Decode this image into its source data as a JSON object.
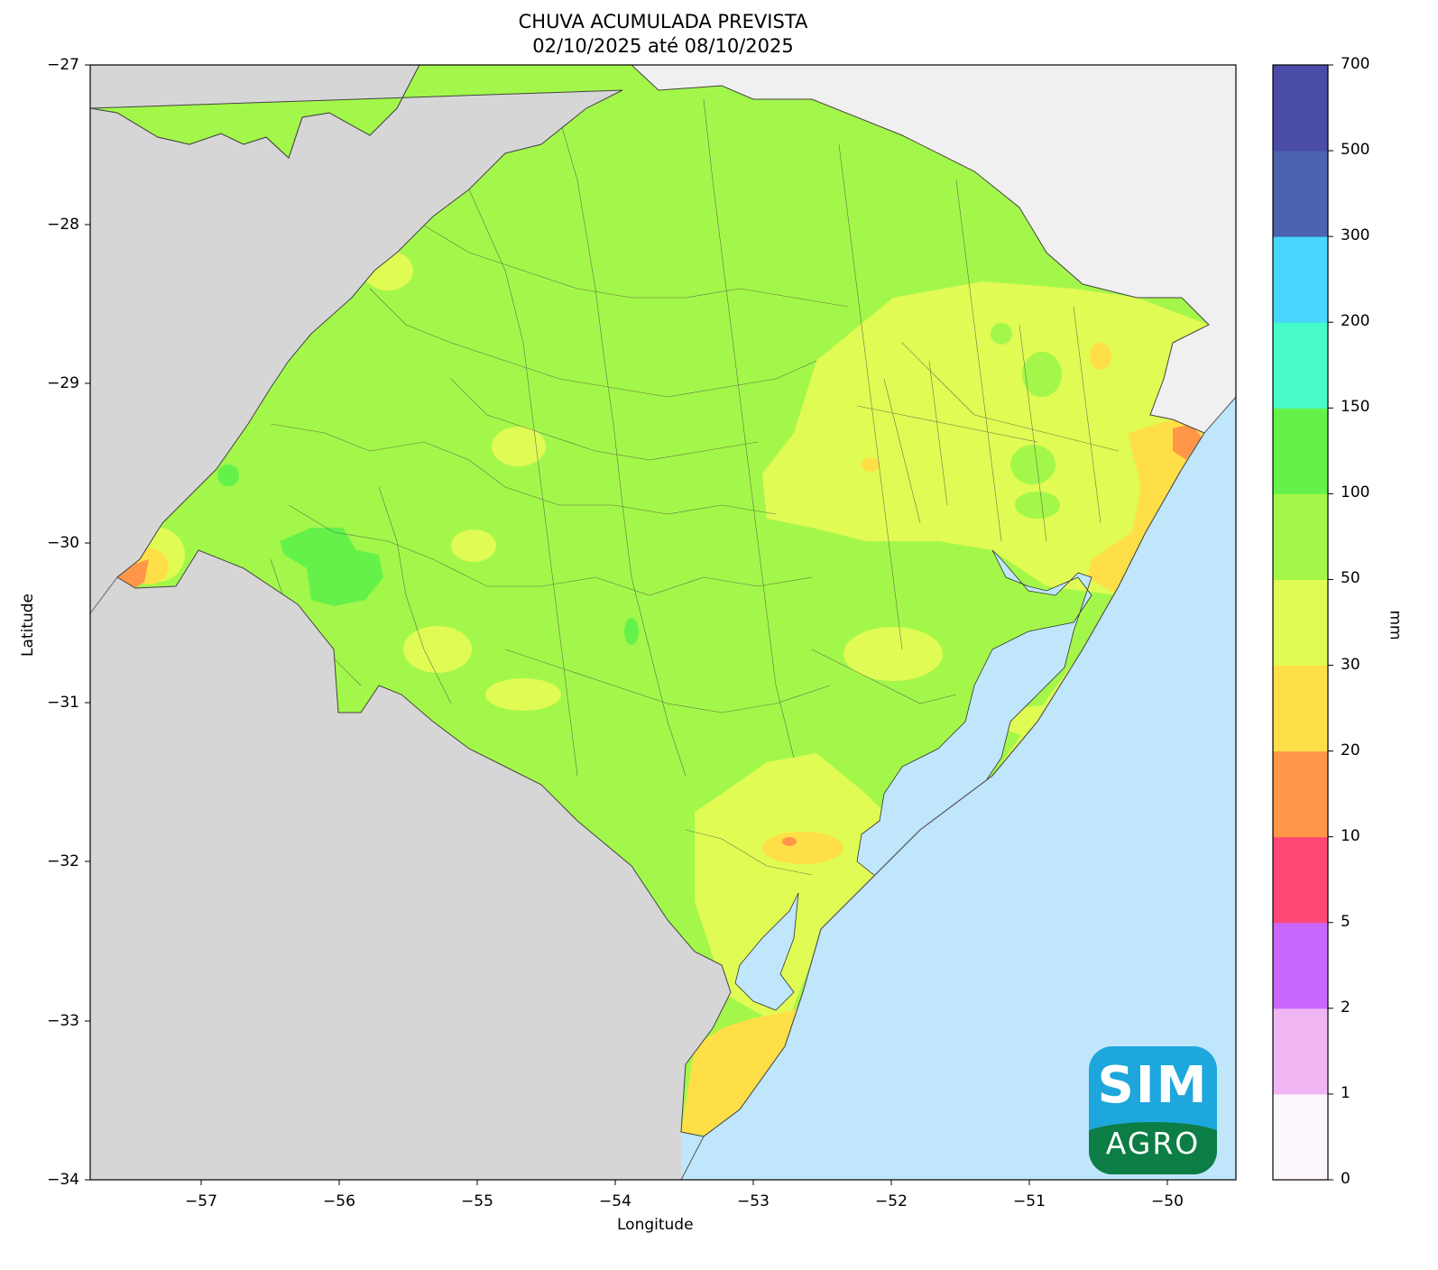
{
  "map": {
    "title_line1": "CHUVA ACUMULADA PREVISTA",
    "title_line2": "02/10/2025 até 08/10/2025",
    "xlabel": "Longitude",
    "ylabel": "Latitude",
    "x_ticks": [
      "−57",
      "−56",
      "−55",
      "−54",
      "−53",
      "−52",
      "−51",
      "−50"
    ],
    "y_ticks": [
      "−27",
      "−28",
      "−29",
      "−30",
      "−31",
      "−32",
      "−33",
      "−34"
    ],
    "extent": {
      "lon": [
        -57.8,
        -49.5
      ],
      "lat": [
        -34,
        -27
      ]
    },
    "colors": {
      "neighbor_land": "#d6d6d6",
      "santa_catarina": "#f0f0f0",
      "ocean": "#bfe6fb",
      "dominant_rain": "#a3f74a"
    }
  },
  "colorbar": {
    "unit": "mm",
    "ticks": [
      "0",
      "1",
      "2",
      "5",
      "10",
      "20",
      "30",
      "50",
      "100",
      "150",
      "200",
      "300",
      "500",
      "700"
    ],
    "bins": [
      {
        "range": "0-1",
        "color": "#fdf7fd"
      },
      {
        "range": "1-2",
        "color": "#f0b5f3"
      },
      {
        "range": "2-5",
        "color": "#c966fb"
      },
      {
        "range": "5-10",
        "color": "#ff4876"
      },
      {
        "range": "10-20",
        "color": "#ff9648"
      },
      {
        "range": "20-30",
        "color": "#ffdf48"
      },
      {
        "range": "30-50",
        "color": "#e0fb54"
      },
      {
        "range": "50-100",
        "color": "#a3f74a"
      },
      {
        "range": "100-150",
        "color": "#64f24a"
      },
      {
        "range": "150-200",
        "color": "#46fbc8"
      },
      {
        "range": "200-300",
        "color": "#48d6ff"
      },
      {
        "range": "300-500",
        "color": "#4b64b0"
      },
      {
        "range": "500-700",
        "color": "#4b4ba8"
      }
    ]
  },
  "logo": {
    "top": "SIM",
    "bottom": "AGRO",
    "top_color": "#1ea7dc",
    "bottom_color": "#0c7d44"
  }
}
